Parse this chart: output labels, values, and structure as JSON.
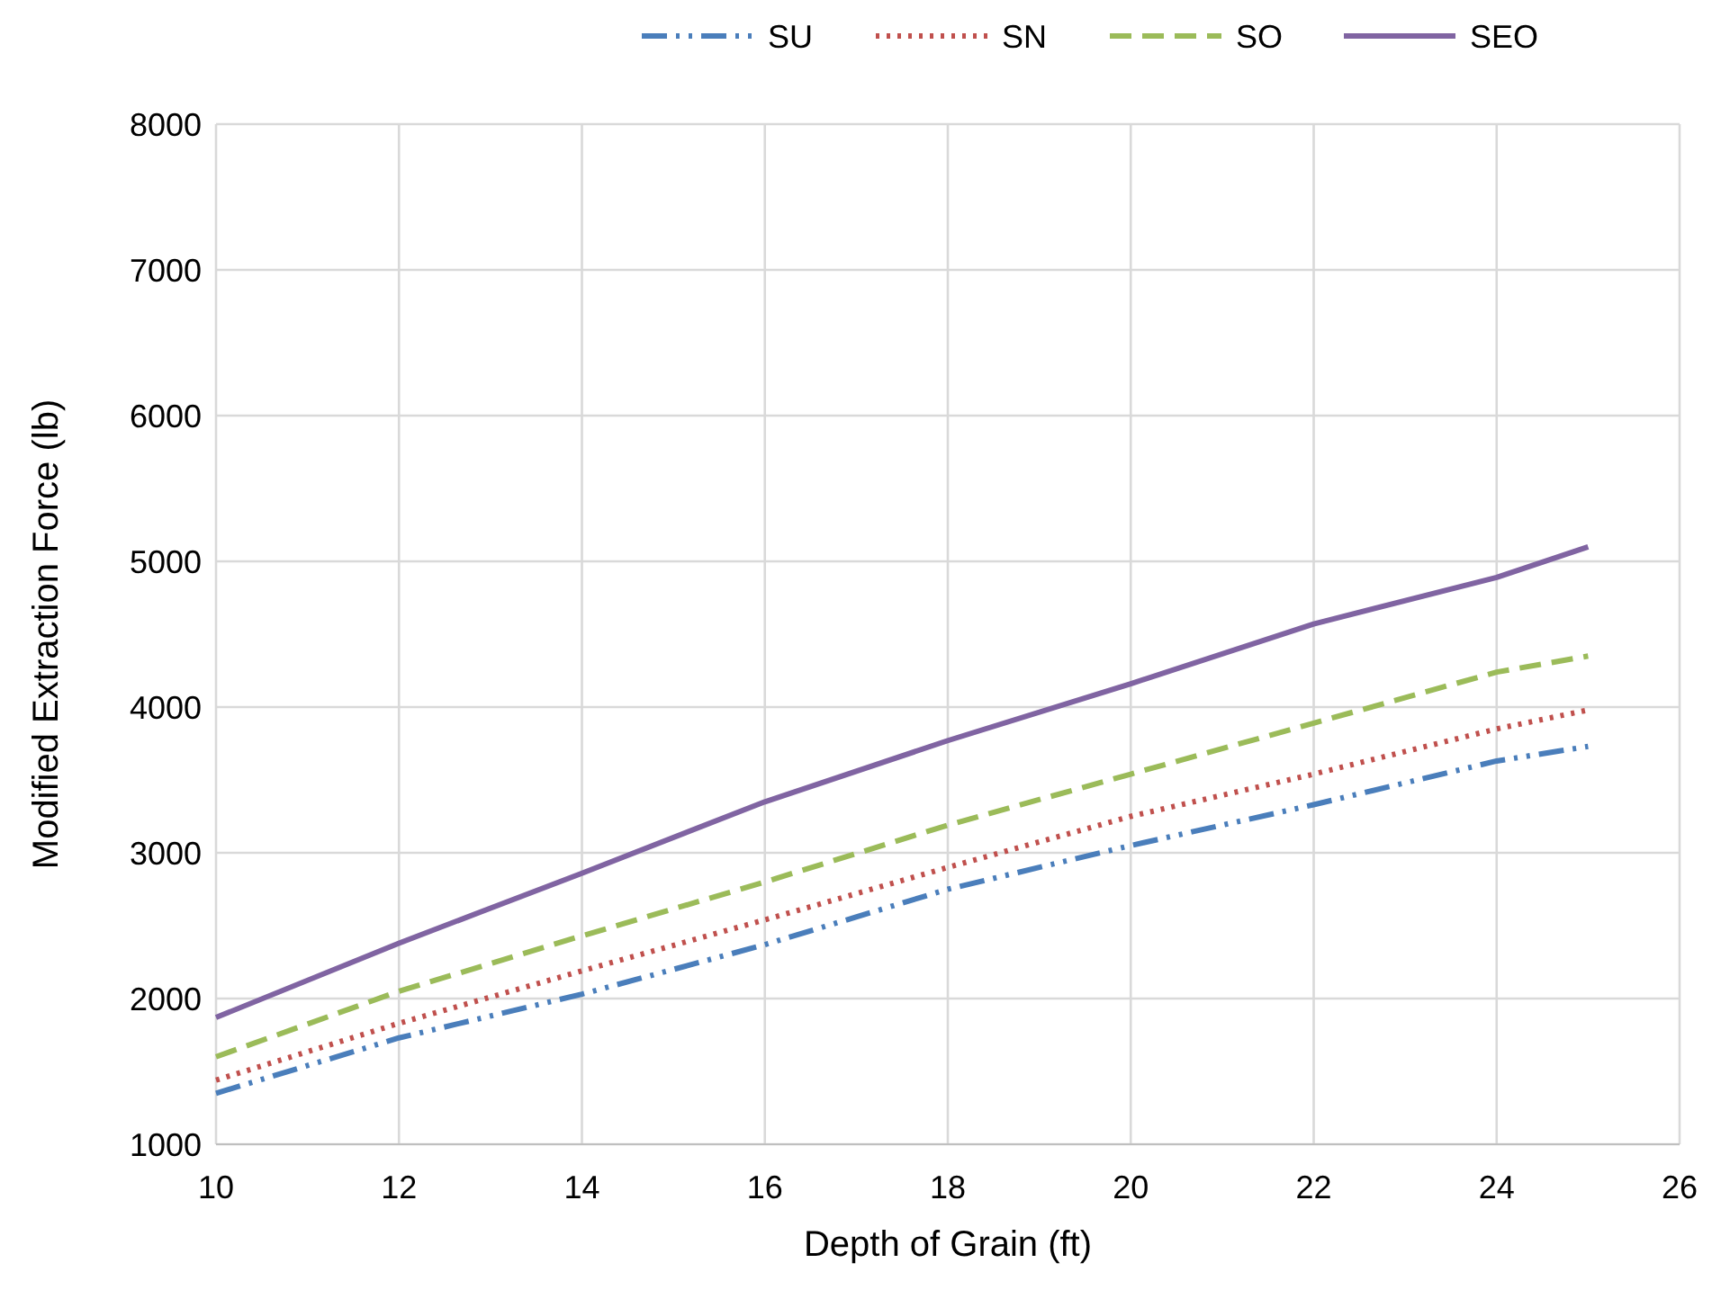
{
  "chart_data": {
    "type": "line",
    "xlabel": "Depth of Grain (ft)",
    "ylabel": "Modified Extraction Force (lb)",
    "x": [
      10,
      12,
      14,
      16,
      18,
      20,
      22,
      24,
      25
    ],
    "series": [
      {
        "name": "SU",
        "color": "#4a7ebb",
        "values": [
          1350,
          1730,
          2030,
          2370,
          2750,
          3050,
          3330,
          3630,
          3730
        ],
        "line_style": "dashdot"
      },
      {
        "name": "SN",
        "color": "#c0504d",
        "values": [
          1440,
          1830,
          2190,
          2540,
          2900,
          3250,
          3540,
          3850,
          3980
        ],
        "line_style": "dotted"
      },
      {
        "name": "SO",
        "color": "#9bbb59",
        "values": [
          1600,
          2050,
          2430,
          2800,
          3190,
          3540,
          3890,
          4240,
          4350
        ],
        "line_style": "dashed"
      },
      {
        "name": "SEO",
        "color": "#8064a2",
        "values": [
          1870,
          2380,
          2860,
          3350,
          3770,
          4160,
          4570,
          4890,
          5100
        ],
        "line_style": "solid"
      }
    ],
    "xlim": [
      10,
      26
    ],
    "xticks": [
      10,
      12,
      14,
      16,
      18,
      20,
      22,
      24,
      26
    ],
    "ylim": [
      1000,
      8000
    ],
    "yticks": [
      1000,
      2000,
      3000,
      4000,
      5000,
      6000,
      7000,
      8000
    ],
    "grid": true,
    "legend": "top",
    "marker": "none"
  }
}
